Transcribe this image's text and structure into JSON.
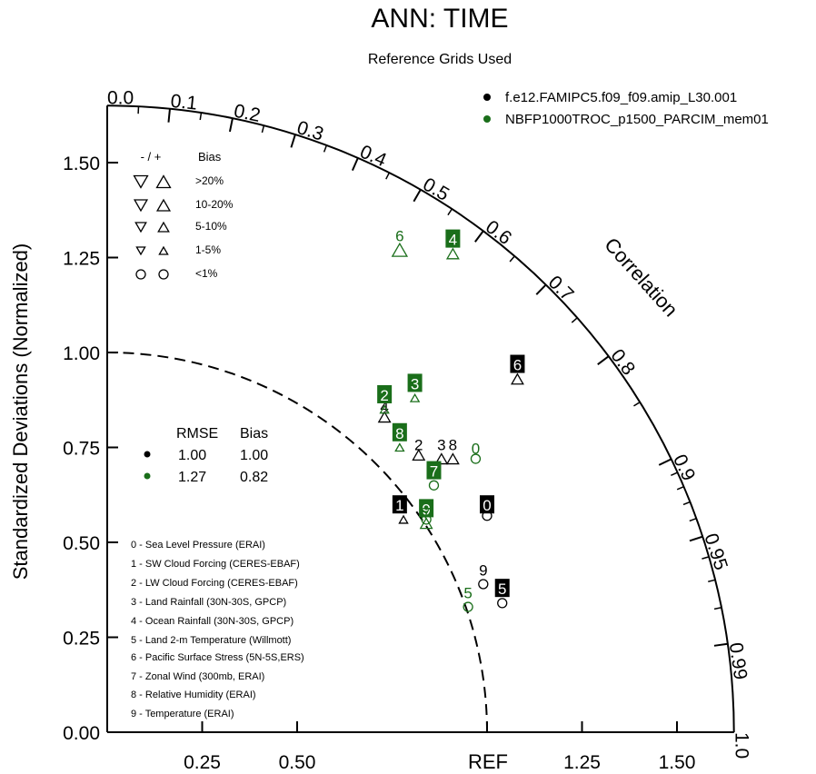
{
  "chart_data": {
    "type": "scatter",
    "subtype": "taylor-diagram",
    "title": "ANN: TIME",
    "subtitle": "Reference Grids Used",
    "ylabel": "Standardized Deviations (Normalized)",
    "correlation_label": "Correlation",
    "ref_label": "REF",
    "std_range": [
      0,
      1.65
    ],
    "std_ticks": [
      0.0,
      0.25,
      0.5,
      0.75,
      1.0,
      1.25,
      1.5
    ],
    "x_tick_values": [
      0.25,
      0.5,
      1.25,
      1.5
    ],
    "ref_value": 1.0,
    "corr_ticks": [
      "0.0",
      "0.1",
      "0.2",
      "0.3",
      "0.4",
      "0.5",
      "0.6",
      "0.7",
      "0.8",
      "0.9",
      "0.95",
      "0.99",
      "1.0"
    ],
    "corr_minor_ticks": [
      0.05,
      0.15,
      0.25,
      0.35,
      0.45,
      0.55,
      0.65,
      0.75,
      0.85,
      0.91,
      0.92,
      0.93,
      0.94,
      0.96,
      0.97,
      0.98
    ],
    "legend_placement": "top-right",
    "series": [
      {
        "name": "f.e12.FAMIPC5.f09_f09.amip_L30.001",
        "color": "#000000"
      },
      {
        "name": "NBFP1000TROC_p1500_PARCIM_mem01",
        "color": "#1a6e1a"
      }
    ],
    "points": [
      {
        "series": 0,
        "label": "0",
        "x": 1.0,
        "y": 0.57,
        "lx": 1.0,
        "ly": 0.6,
        "marker": "circle",
        "boxed": true
      },
      {
        "series": 0,
        "label": "1",
        "x": 0.78,
        "y": 0.56,
        "lx": 0.77,
        "ly": 0.6,
        "marker": "tri-up-small",
        "boxed": true
      },
      {
        "series": 0,
        "label": "2",
        "x": 0.82,
        "y": 0.73,
        "lx": 0.82,
        "ly": 0.76,
        "marker": "tri-up",
        "boxed": false
      },
      {
        "series": 0,
        "label": "3",
        "x": 0.88,
        "y": 0.72,
        "lx": 0.88,
        "ly": 0.76,
        "marker": "tri-up",
        "boxed": false
      },
      {
        "series": 0,
        "label": "4",
        "x": 0.73,
        "y": 0.83,
        "lx": 0.73,
        "ly": 0.86,
        "marker": "tri-up",
        "boxed": false
      },
      {
        "series": 0,
        "label": "5",
        "x": 1.04,
        "y": 0.34,
        "lx": 1.04,
        "ly": 0.38,
        "marker": "circle",
        "boxed": true
      },
      {
        "series": 0,
        "label": "6",
        "x": 1.08,
        "y": 0.93,
        "lx": 1.08,
        "ly": 0.97,
        "marker": "tri-up",
        "boxed": true
      },
      {
        "series": 0,
        "label": "8",
        "x": 0.91,
        "y": 0.72,
        "lx": 0.91,
        "ly": 0.76,
        "marker": "tri-up",
        "boxed": false
      },
      {
        "series": 0,
        "label": "9",
        "x": 0.99,
        "y": 0.39,
        "lx": 0.99,
        "ly": 0.43,
        "marker": "circle",
        "boxed": false
      },
      {
        "series": 1,
        "label": "0",
        "x": 0.97,
        "y": 0.72,
        "lx": 0.97,
        "ly": 0.75,
        "marker": "circle",
        "boxed": false
      },
      {
        "series": 1,
        "label": "2",
        "x": 0.73,
        "y": 0.85,
        "lx": 0.73,
        "ly": 0.89,
        "marker": "tri-up-small",
        "boxed": true
      },
      {
        "series": 1,
        "label": "3",
        "x": 0.81,
        "y": 0.88,
        "lx": 0.81,
        "ly": 0.92,
        "marker": "tri-up-small",
        "boxed": true
      },
      {
        "series": 1,
        "label": "4",
        "x": 0.91,
        "y": 1.26,
        "lx": 0.91,
        "ly": 1.3,
        "marker": "tri-up",
        "boxed": true
      },
      {
        "series": 1,
        "label": "5",
        "x": 0.95,
        "y": 0.33,
        "lx": 0.95,
        "ly": 0.37,
        "marker": "circle",
        "boxed": false
      },
      {
        "series": 1,
        "label": "6",
        "x": 0.77,
        "y": 1.27,
        "lx": 0.77,
        "ly": 1.31,
        "marker": "tri-up-large",
        "boxed": false
      },
      {
        "series": 1,
        "label": "7",
        "x": 0.86,
        "y": 0.65,
        "lx": 0.86,
        "ly": 0.69,
        "marker": "circle",
        "boxed": true
      },
      {
        "series": 1,
        "label": "8",
        "x": 0.77,
        "y": 0.75,
        "lx": 0.77,
        "ly": 0.79,
        "marker": "tri-up-small",
        "boxed": true
      },
      {
        "series": 1,
        "label": "9",
        "x": 0.84,
        "y": 0.56,
        "lx": 0.84,
        "ly": 0.59,
        "marker": "circle",
        "boxed": true
      },
      {
        "series": 1,
        "label": "7",
        "x": 0.84,
        "y": 0.55,
        "lx": 0.84,
        "ly": 0.58,
        "marker": "tri-up",
        "boxed": false
      }
    ]
  },
  "bias_legend": {
    "header_signs": "- / +",
    "header_bias": "Bias",
    "rows": [
      {
        "label": ">20%",
        "size": "xl"
      },
      {
        "label": "10-20%",
        "size": "l"
      },
      {
        "label": "5-10%",
        "size": "m"
      },
      {
        "label": "1-5%",
        "size": "s"
      },
      {
        "label": "<1%",
        "size": "circle"
      }
    ]
  },
  "summary": {
    "header_rmse": "RMSE",
    "header_bias": "Bias",
    "rows": [
      {
        "rmse": "1.00",
        "bias": "1.00",
        "color": "#000000"
      },
      {
        "rmse": "1.27",
        "bias": "0.82",
        "color": "#1a6e1a"
      }
    ]
  },
  "variables": [
    "0 - Sea Level Pressure (ERAI)",
    "1 - SW Cloud Forcing (CERES-EBAF)",
    "2 - LW Cloud Forcing (CERES-EBAF)",
    "3 - Land Rainfall (30N-30S, GPCP)",
    "4 - Ocean Rainfall (30N-30S, GPCP)",
    "5 - Land 2-m Temperature (Willmott)",
    "6 - Pacific Surface Stress (5N-5S,ERS)",
    "7 - Zonal Wind (300mb, ERAI)",
    "8 - Relative Humidity (ERAI)",
    "9 - Temperature (ERAI)"
  ]
}
